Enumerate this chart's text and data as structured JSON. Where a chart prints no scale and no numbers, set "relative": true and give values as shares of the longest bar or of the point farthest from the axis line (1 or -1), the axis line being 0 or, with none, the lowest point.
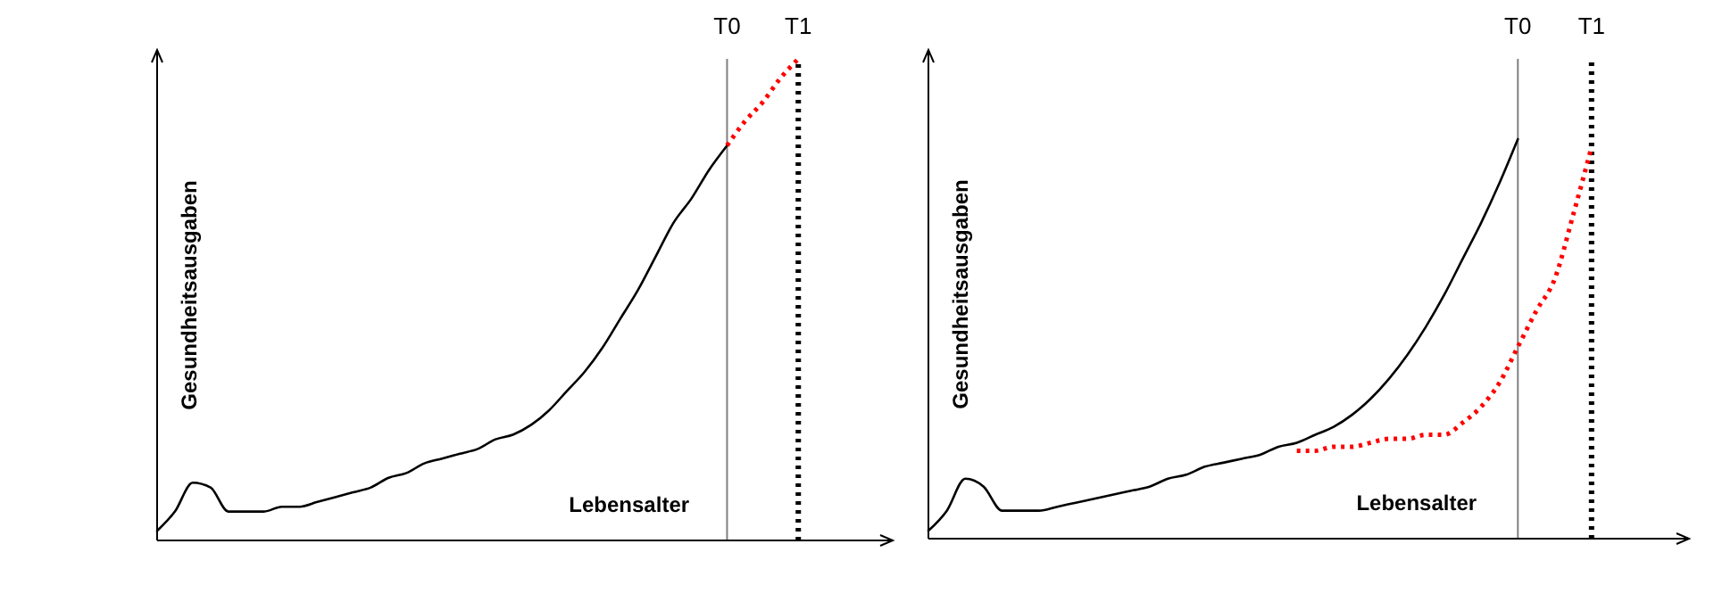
{
  "chart_data": [
    {
      "type": "line",
      "relative": true,
      "xlabel": "Lebensalter",
      "ylabel": "Gesundheitsausgaben",
      "categories": [
        null,
        null,
        null,
        null,
        null,
        null,
        null,
        null,
        null,
        null,
        null,
        null,
        null,
        null,
        null,
        null,
        null,
        null,
        null,
        null,
        null,
        null,
        null,
        null,
        null,
        null,
        null,
        null,
        null,
        null,
        null,
        null,
        null,
        null,
        null,
        null,
        null,
        null,
        null,
        null,
        null,
        null
      ],
      "series": [
        {
          "color": "#000000",
          "line_style": "solid",
          "values": [
            0.02,
            0.06,
            0.12,
            0.11,
            0.06,
            0.06,
            0.06,
            0.07,
            0.07,
            0.08,
            0.09,
            0.1,
            0.11,
            0.13,
            0.14,
            0.16,
            0.17,
            0.18,
            0.19,
            0.21,
            0.22,
            0.24,
            0.27,
            0.31,
            0.35,
            0.4,
            0.46,
            0.52,
            0.59,
            0.66,
            0.71,
            0.77,
            0.82,
            null,
            null,
            null,
            null,
            null,
            null,
            null,
            null,
            null
          ]
        },
        {
          "color": "#ff0000",
          "line_style": "dotted",
          "values": [
            null,
            null,
            null,
            null,
            null,
            null,
            null,
            null,
            null,
            null,
            null,
            null,
            null,
            null,
            null,
            null,
            null,
            null,
            null,
            null,
            null,
            null,
            null,
            null,
            null,
            null,
            null,
            null,
            null,
            null,
            null,
            null,
            0.82,
            0.87,
            0.91,
            0.96,
            1.0,
            null,
            null,
            null,
            null,
            null
          ]
        }
      ],
      "annotations": [
        "T0",
        "T1"
      ]
    },
    {
      "type": "line",
      "relative": true,
      "xlabel": "Lebensalter",
      "ylabel": "Gesundheitsausgaben",
      "categories": [
        null,
        null,
        null,
        null,
        null,
        null,
        null,
        null,
        null,
        null,
        null,
        null,
        null,
        null,
        null,
        null,
        null,
        null,
        null,
        null,
        null,
        null,
        null,
        null,
        null,
        null,
        null,
        null,
        null,
        null,
        null,
        null,
        null,
        null,
        null,
        null,
        null,
        null,
        null,
        null,
        null,
        null
      ],
      "series": [
        {
          "color": "#000000",
          "line_style": "solid",
          "values": [
            0.02,
            0.07,
            0.15,
            0.13,
            0.07,
            0.07,
            0.07,
            0.08,
            0.09,
            0.1,
            0.11,
            0.12,
            0.13,
            0.15,
            0.16,
            0.18,
            0.19,
            0.2,
            0.21,
            0.23,
            0.24,
            0.26,
            0.28,
            0.31,
            0.35,
            0.4,
            0.46,
            0.53,
            0.61,
            0.7,
            0.79,
            0.89,
            1.0,
            null,
            null,
            null,
            null,
            null,
            null,
            null,
            null,
            null
          ]
        },
        {
          "color": "#ff0000",
          "line_style": "dotted",
          "values": [
            null,
            null,
            null,
            null,
            null,
            null,
            null,
            null,
            null,
            null,
            null,
            null,
            null,
            null,
            null,
            null,
            null,
            null,
            null,
            null,
            0.22,
            0.22,
            0.23,
            0.23,
            0.24,
            0.25,
            0.25,
            0.26,
            0.26,
            0.29,
            0.33,
            0.39,
            0.48,
            0.57,
            0.65,
            0.81,
            0.98,
            null,
            null,
            null,
            null,
            null
          ]
        }
      ],
      "annotations": [
        "T0",
        "T1"
      ]
    }
  ]
}
